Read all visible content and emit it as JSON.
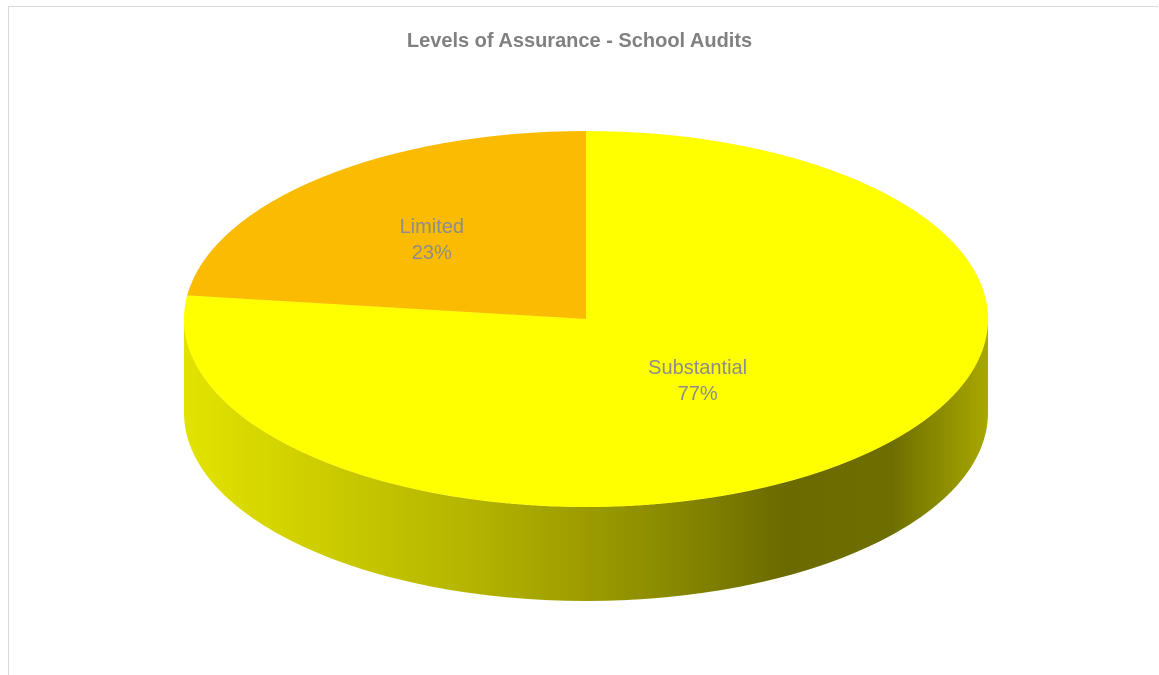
{
  "chart_data": {
    "type": "pie",
    "title": "Levels of Assurance - School Audits",
    "categories": [
      "Substantial",
      "Limited"
    ],
    "values": [
      77,
      23
    ],
    "percent_labels": [
      "77%",
      "23%"
    ],
    "colors": [
      "#ffff00",
      "#fbbb00"
    ],
    "style": "3d",
    "legend": "none"
  }
}
